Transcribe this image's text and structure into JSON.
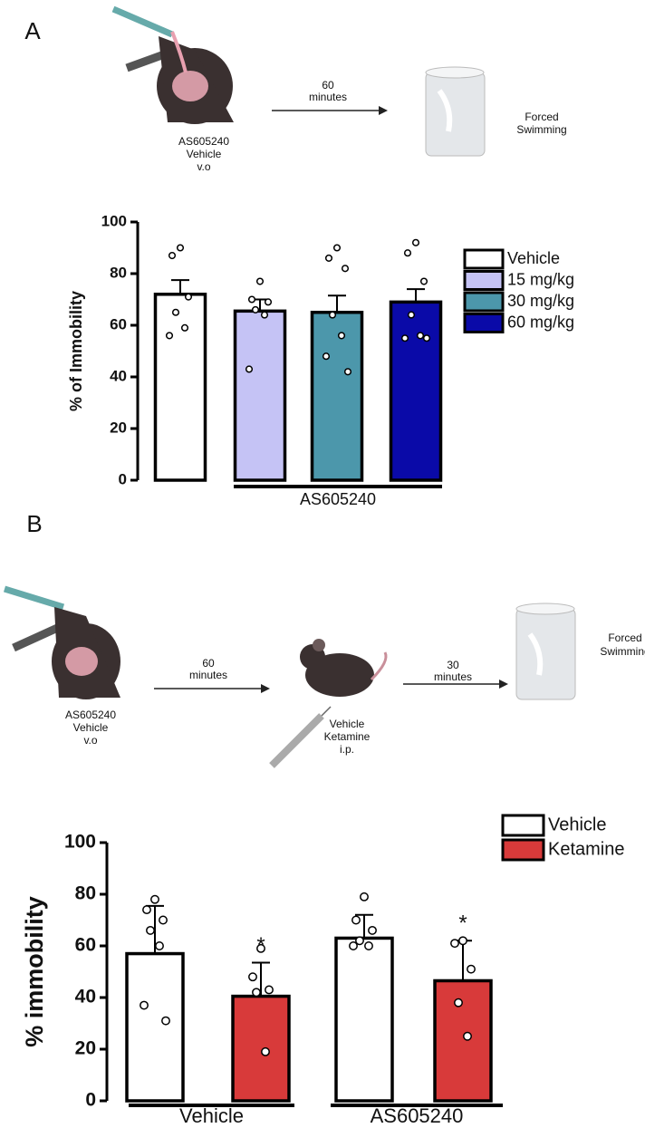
{
  "panels": [
    {
      "label": "A",
      "treatment": [
        "AS605240",
        "Vehicle",
        "v.o"
      ],
      "wait": [
        "60",
        "minutes"
      ],
      "test": [
        "Forced",
        "Swimming"
      ]
    },
    {
      "label": "B",
      "treatment": [
        "AS605240",
        "Vehicle",
        "v.o"
      ],
      "wait1": [
        "60",
        "minutes"
      ],
      "injection": [
        "Vehicle",
        "Ketamine",
        "i.p."
      ],
      "wait2": [
        "30",
        "minutes"
      ],
      "test": [
        "Forced",
        "Swimming"
      ]
    }
  ],
  "chart_data": [
    {
      "type": "bar",
      "ylabel": "% of Immobility",
      "categories": [
        null
      ],
      "group_label": "AS605240",
      "ylim": [
        0,
        100
      ],
      "yticks": [
        0,
        20,
        40,
        60,
        80,
        100
      ],
      "series": [
        {
          "name": "Vehicle",
          "color": "#ffffff",
          "values": [
            72
          ],
          "errors": [
            5.5
          ],
          "points": [
            [
              90,
              87,
              71,
              65,
              59,
              56
            ]
          ]
        },
        {
          "name": "15 mg/kg",
          "color": "#c5c3f5",
          "values": [
            65.5
          ],
          "errors": [
            4.5
          ],
          "points": [
            [
              77,
              70,
              69,
              66,
              64,
              43
            ]
          ]
        },
        {
          "name": "30 mg/kg",
          "color": "#4c97ab",
          "values": [
            65
          ],
          "errors": [
            6.5
          ],
          "points": [
            [
              90,
              86,
              82,
              64,
              56,
              48,
              42
            ]
          ]
        },
        {
          "name": "60 mg/kg",
          "color": "#0a0aa8",
          "values": [
            69
          ],
          "errors": [
            5
          ],
          "points": [
            [
              92,
              88,
              77,
              64,
              56,
              55,
              55
            ]
          ]
        }
      ]
    },
    {
      "type": "bar",
      "ylabel": "% immobility",
      "categories": [
        "Vehicle",
        "AS605240"
      ],
      "ylim": [
        0,
        100
      ],
      "yticks": [
        0,
        20,
        40,
        60,
        80,
        100
      ],
      "series": [
        {
          "name": "Vehicle",
          "color": "#ffffff",
          "values": [
            57,
            63
          ],
          "errors": [
            18.5,
            9
          ],
          "points": [
            [
              78,
              74,
              70,
              66,
              60,
              37,
              31
            ],
            [
              79,
              70,
              66,
              62,
              60,
              60
            ]
          ]
        },
        {
          "name": "Ketamine",
          "color": "#d83a3a",
          "values": [
            40.5,
            46.5
          ],
          "errors": [
            13,
            15.5
          ],
          "points": [
            [
              59,
              48,
              43,
              42,
              19
            ],
            [
              62,
              61,
              51,
              38,
              25
            ]
          ],
          "significance": [
            "*",
            "*"
          ]
        }
      ]
    }
  ]
}
